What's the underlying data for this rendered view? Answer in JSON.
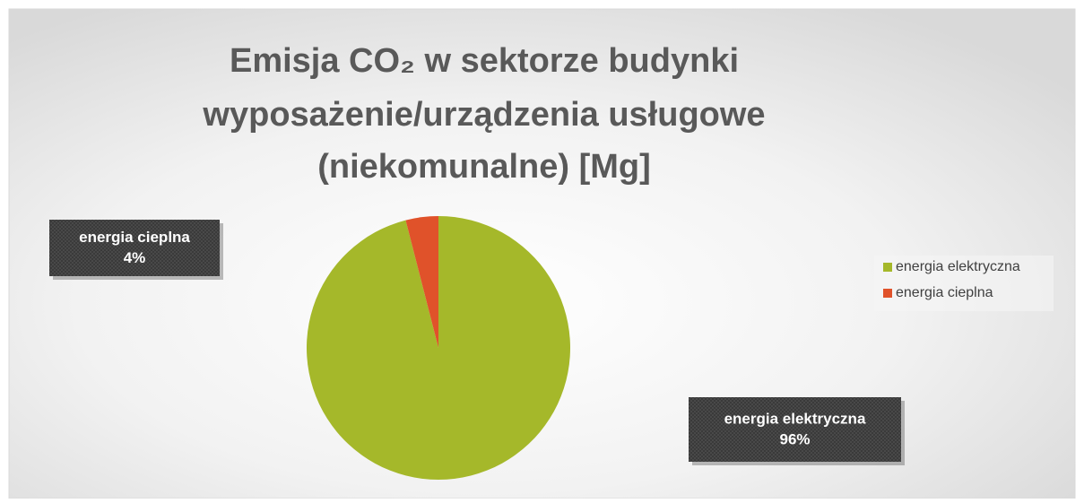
{
  "chart_data": {
    "type": "pie",
    "title": [
      "Emisja CO₂ w sektorze budynki",
      "wyposażenie/urządzenia usługowe",
      "(niekomunalne) [Mg]"
    ],
    "categories": [
      "energia elektryczna",
      "energia cieplna"
    ],
    "values": [
      96,
      4
    ],
    "value_labels": [
      "96%",
      "4%"
    ],
    "colors": [
      "#a5b82a",
      "#e0522a"
    ],
    "legend": "right"
  }
}
